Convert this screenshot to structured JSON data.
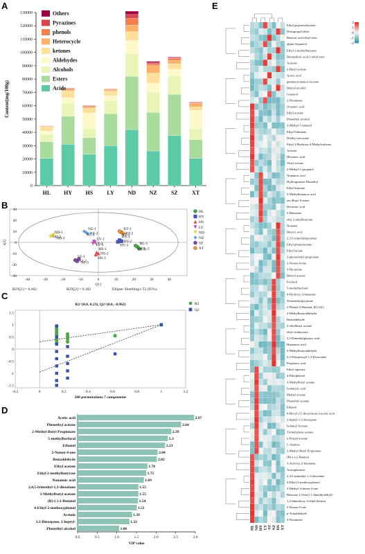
{
  "panels": {
    "A": "A",
    "B": "B",
    "C": "C",
    "D": "D",
    "E": "E"
  },
  "chart_data": [
    {
      "panel": "A",
      "type": "bar",
      "stacked": true,
      "ylabel": "Content(mg/100g)",
      "ylim": [
        0,
        130000
      ],
      "yticks": [
        0,
        10000,
        20000,
        30000,
        40000,
        50000,
        60000,
        70000,
        80000,
        90000,
        100000,
        110000,
        120000,
        130000
      ],
      "categories": [
        "HL",
        "HY",
        "HS",
        "LY",
        "ND",
        "NZ",
        "SZ",
        "XT"
      ],
      "legend_position": "top-left",
      "series": [
        {
          "name": "Acids",
          "color": "#5cc9a7",
          "values": [
            20500,
            31000,
            23500,
            30000,
            42000,
            26000,
            37500,
            20500
          ]
        },
        {
          "name": "Esters",
          "color": "#a9dc9c",
          "values": [
            12500,
            21000,
            12500,
            24000,
            40000,
            29000,
            31000,
            14000
          ]
        },
        {
          "name": "Alcohols",
          "color": "#e9f5b6",
          "values": [
            5500,
            10000,
            7000,
            10000,
            17000,
            15000,
            14000,
            8500
          ]
        },
        {
          "name": "Aldehydes",
          "color": "#fff8ca",
          "values": [
            2500,
            4000,
            11500,
            3500,
            10000,
            7000,
            5000,
            13500
          ]
        },
        {
          "name": "ketones",
          "color": "#ffe09a",
          "values": [
            3000,
            5000,
            3500,
            3500,
            6500,
            7500,
            4000,
            2500
          ]
        },
        {
          "name": "Heterocycle",
          "color": "#fbb167",
          "values": [
            500,
            1200,
            1200,
            1000,
            5000,
            5500,
            2500,
            2500
          ]
        },
        {
          "name": "phenols",
          "color": "#f37f4d",
          "values": [
            300,
            700,
            700,
            600,
            5000,
            1500,
            1500,
            800
          ]
        },
        {
          "name": "Pyrazines",
          "color": "#d9454f",
          "values": [
            200,
            300,
            300,
            200,
            3000,
            800,
            500,
            300
          ]
        },
        {
          "name": "Others",
          "color": "#9e0142",
          "values": [
            100,
            200,
            200,
            100,
            2500,
            1000,
            500,
            300
          ]
        }
      ]
    },
    {
      "panel": "B",
      "type": "scatter",
      "xlabel": "t[1]",
      "ylabel": "t[2]",
      "xlim": [
        -50,
        50
      ],
      "ylim": [
        -30,
        30
      ],
      "xticks": [
        -40,
        -30,
        -20,
        -10,
        0,
        10,
        20,
        30,
        40
      ],
      "yticks": [
        -30,
        -20,
        -10,
        0,
        10,
        20,
        30
      ],
      "footer": [
        "R2X[1] = 0.462",
        "R2X[2] = 0.182",
        "Ellipse: Hotelling's T2 (95%)"
      ],
      "legend_position": "right",
      "series": [
        {
          "name": "HL",
          "color": "#4aa84a",
          "marker": "circle",
          "labels": [
            "HL-1",
            "HL-2",
            "HL-3"
          ],
          "points": [
            [
              22,
              -4
            ],
            [
              23,
              -5.5
            ],
            [
              21,
              -3
            ]
          ]
        },
        {
          "name": "HY",
          "color": "#4756b0",
          "marker": "square",
          "labels": [
            "HY-1",
            "HY-2",
            "HY-3"
          ],
          "points": [
            [
              12,
              2
            ],
            [
              13,
              1
            ],
            [
              11,
              0.5
            ]
          ]
        },
        {
          "name": "HS",
          "color": "#d94f4f",
          "marker": "triangle",
          "labels": [
            "HS-1",
            "HS-2",
            "HS-3"
          ],
          "points": [
            [
              -1,
              -9
            ],
            [
              0,
              -10
            ],
            [
              -1.5,
              -11
            ]
          ]
        },
        {
          "name": "LY",
          "color": "#c34fbf",
          "marker": "triangle-down",
          "labels": [
            "LY-1",
            "LY-2",
            "LY-3"
          ],
          "points": [
            [
              -2,
              0
            ],
            [
              -3,
              -1
            ],
            [
              -2.5,
              0.8
            ]
          ]
        },
        {
          "name": "ND",
          "color": "#e6d145",
          "marker": "triangle-down",
          "labels": [
            "ND-1",
            "ND-2",
            "ND-3"
          ],
          "points": [
            [
              -26,
              6
            ],
            [
              -27,
              5
            ],
            [
              -25,
              7
            ]
          ]
        },
        {
          "name": "NZ",
          "color": "#5da0e0",
          "marker": "diamond",
          "labels": [
            "NZ-1",
            "NZ-2",
            "NZ-3"
          ],
          "points": [
            [
              -7,
              9
            ],
            [
              -6,
              8
            ],
            [
              -8,
              10
            ]
          ]
        },
        {
          "name": "SZ",
          "color": "#7a4aa0",
          "marker": "circle",
          "labels": [
            "SZ-1",
            "SZ-2",
            "SZ-3"
          ],
          "points": [
            [
              -13,
              -16
            ],
            [
              -12,
              -17
            ],
            [
              -11,
              -15
            ]
          ]
        },
        {
          "name": "XT",
          "color": "#f0943b",
          "marker": "circle",
          "labels": [
            "XT-1",
            "XT-2",
            "XT-3"
          ],
          "points": [
            [
              13,
              9
            ],
            [
              14,
              8
            ],
            [
              12,
              10
            ]
          ]
        }
      ]
    },
    {
      "panel": "C",
      "type": "scatter",
      "title": "R2=(0.0, 0.23), Q2=(0.0, -0.962)",
      "xlabel": "200 permutations 7 components",
      "xlim": [
        -0.2,
        1.2
      ],
      "ylim": [
        -1.6,
        1.6
      ],
      "xticks": [
        -0.2,
        0,
        0.2,
        0.4,
        0.6,
        0.8,
        1,
        1.2
      ],
      "yticks": [
        1.5,
        1,
        0.5,
        0,
        -0.5,
        -1,
        -1.5
      ],
      "legend_position": "right",
      "series": [
        {
          "name": "R2",
          "color": "#4aa84a",
          "marker": "circle",
          "points": [
            [
              0.14,
              0.95
            ],
            [
              0.14,
              0.85
            ],
            [
              0.14,
              0.75
            ],
            [
              0.14,
              0.65
            ],
            [
              0.14,
              0.55
            ],
            [
              0.14,
              0.45
            ],
            [
              0.14,
              0.35
            ],
            [
              0.14,
              0.25
            ],
            [
              0.23,
              0.62
            ],
            [
              0.23,
              0.52
            ],
            [
              0.23,
              0.42
            ],
            [
              0.23,
              0.3
            ],
            [
              0.62,
              0.55
            ],
            [
              1,
              1
            ]
          ]
        },
        {
          "name": "Q2",
          "color": "#3a4fa8",
          "marker": "square",
          "points": [
            [
              0.14,
              0.95
            ],
            [
              0.14,
              0.5
            ],
            [
              0.14,
              0.2
            ],
            [
              0.14,
              -0.1
            ],
            [
              0.14,
              -0.4
            ],
            [
              0.14,
              -0.7
            ],
            [
              0.14,
              -1.0
            ],
            [
              0.14,
              -1.3
            ],
            [
              0.14,
              -1.5
            ],
            [
              0.23,
              0.1
            ],
            [
              0.23,
              -0.3
            ],
            [
              0.23,
              -0.6
            ],
            [
              0.23,
              -0.9
            ],
            [
              0.23,
              -1.2
            ],
            [
              0.62,
              -0.2
            ],
            [
              1,
              1
            ]
          ]
        }
      ],
      "regression_lines": [
        {
          "name": "R2",
          "from": [
            0,
            0.3
          ],
          "to": [
            1,
            1
          ]
        },
        {
          "name": "Q2",
          "from": [
            0,
            -0.95
          ],
          "to": [
            1,
            1
          ]
        }
      ]
    },
    {
      "panel": "D",
      "type": "bar",
      "orientation": "horizontal",
      "xlabel": "VIP value",
      "xlim": [
        0,
        3
      ],
      "xticks": [
        0,
        0.5,
        1,
        1.5,
        2,
        2.5,
        3
      ],
      "xtick_labels": [
        "0.0",
        "0.5",
        "1.0",
        "1.5",
        "2.0",
        "2.5",
        "3.0"
      ],
      "color": "#8fc3b5",
      "categories": [
        "Acetic acid",
        "Phenethyl acetate",
        "2-Methyl Butyl Propionate",
        "5-methylfurfural",
        "Ethanol",
        "2-Nonen-4-one",
        "Benzaldehyde",
        "Ethyl acetate",
        "Ethyl 2-methylbutyrate",
        "Nonanoic acid",
        "2,4,5-trimethyl-1,3-dioxolane",
        "3-Methylbutyl acetate",
        "(R)-(-)-2-Butanol",
        "4-Ethyl-2-methoxyphenol",
        "Acetoin",
        "1,3-Dioxepane, 2-heptyl-",
        "Phenethyl alcohol"
      ],
      "values": [
        2.97,
        2.64,
        2.39,
        2.3,
        2.23,
        2.04,
        2.02,
        1.78,
        1.75,
        1.69,
        1.55,
        1.55,
        1.54,
        1.51,
        1.39,
        1.32,
        1.06
      ],
      "value_labels": [
        "2.97",
        "2.64",
        "2.39",
        "2.3",
        "2.23",
        "2.04",
        "2.02",
        "1.78",
        "1.75",
        "1.69",
        "1.55",
        "1.55",
        "1.54",
        "1.51",
        "1.39",
        "1.32",
        "1.06"
      ]
    },
    {
      "panel": "E",
      "type": "heatmap",
      "columns": [
        "HL",
        "ND",
        "HY",
        "LY",
        "SZ",
        "NZ",
        "HS",
        "XT"
      ],
      "colorbar": {
        "ticks": [
          "2",
          "1",
          "0",
          "-1",
          "-2"
        ],
        "low": "#2a9aa8",
        "mid": "#f5f5f5",
        "high": "#e8312d"
      },
      "rows": [
        "Ethyl propionylacetate",
        "Diisopropyl ether",
        "Benzoic acid ethyl ester",
        "alpha-Terpineol",
        "Ethyl 2-methylbutyrate",
        "Butanedioic acid,1-ethyl ester",
        "Acetone",
        "n-Butyl acetate",
        "Acetic acid",
        "gamma-nonanoic lactone",
        "Benzyl alcohol",
        "Guaiacol",
        "2-Nonanone",
        "Octanoic acid",
        "Ethyl acetate",
        "Phenethyl alcohol",
        "3-Methyl-1-butanol",
        "Ethyl Palmitate",
        "Diethyl succinate",
        "Ethyl 2-Hydroxy-4-Methylvalerate",
        "Acetoin",
        "Hexanoic acid",
        "Vinyl acetate",
        "2-Methyl-1-propanol",
        "Nonanoic acid",
        "Hydroquinone Dimethyl",
        "Ethyl butyrate",
        "3-Methylbutanoic acid",
        "sec-Butyl Acetate",
        "Decanoic acid",
        "2-Butanone",
        "ethy 2-ethylbutyrate",
        "Nonanal",
        "Butyric acid",
        "2,3,5-trimethylpyrazine",
        "Ethyl phenylacetate",
        "Ethyl lactate",
        "2-phenylethyl propionate",
        "2-Nonen-4-one",
        "3-Decanone",
        "Benzyl acetate",
        "Furfural",
        "5-methylfurfural",
        "4-Hydroxy-2-butanone",
        "Tetramethylpyrazine",
        "2-Phenyl-2-Butenal, (E)+(Z)",
        "2-Methylbutyraldehyde",
        "Benzaldehyde",
        "2-ethylbutyl acetate",
        "ethyl isobutyrate",
        "3,3-Dimethylglutaric acid",
        "Heptanoic acid",
        "3-Methylbutyraldehyde",
        "2,2-Diisopropyl-1,3-Dioxolane",
        "Propanoic acid",
        "Ethyl caproate",
        "4-Ethylphenol",
        "3-Methylbutyl acetate",
        "Isobutyric acid",
        "Methyl acetate",
        "Phenethyl acetate",
        "Ethanol",
        "4-Hexyl-2,5-dioxofuran-3-acetic acid",
        "2-heptyl-1,3-dioxepane",
        "Isobutyl Acetate",
        "Trimethylene acetate",
        "n-Propyl acetate",
        "L-Alanine",
        "2-Methyl Butyl Propionate",
        "(R)-(-)-2-Butanol",
        "3-Acetoxy-2-butanone",
        "Acetophenone",
        "2,4,5-trimethyl-1,3-dioxolane",
        "4-Ethyl-2-methoxyphenol",
        "3-Methyl-3-decen-2-one",
        "Benzene,1,3-bis(1,1-dimethylethyl)-",
        "1,2-dimethoxy-4-ethyl-benzen",
        "3-Nonen-5-one",
        "p-Tolualdehyde",
        "3-Nonanone"
      ]
    }
  ]
}
